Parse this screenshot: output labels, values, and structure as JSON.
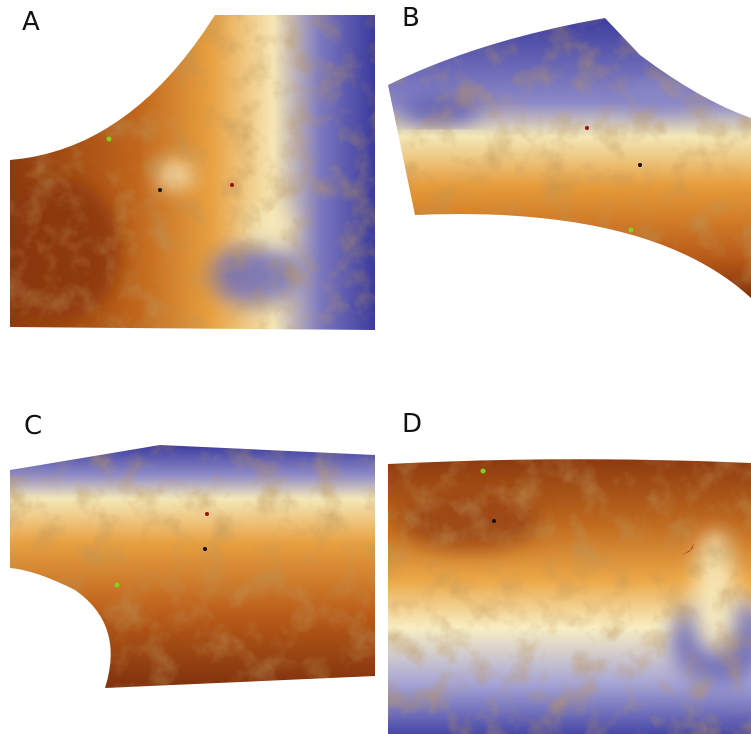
{
  "panels": [
    {
      "label": "A"
    },
    {
      "label": "B"
    },
    {
      "label": "C"
    },
    {
      "label": "D"
    }
  ]
}
